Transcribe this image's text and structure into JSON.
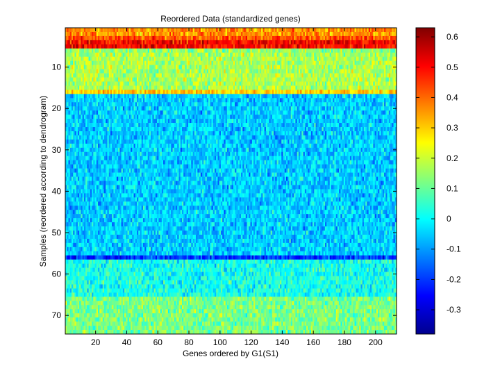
{
  "chart_data": {
    "type": "heatmap",
    "title": "Reordered Data (standardized genes)",
    "xlabel": "Genes ordered by G1(S1)",
    "ylabel": "Samples (reordered according to dendrogram)",
    "n_genes": 213,
    "n_samples": 74,
    "xlim": [
      0.5,
      213.5
    ],
    "ylim": [
      0.5,
      74.5
    ],
    "y_direction": "reversed",
    "xticks": [
      20,
      40,
      60,
      80,
      100,
      120,
      140,
      160,
      180,
      200
    ],
    "yticks": [
      10,
      20,
      30,
      40,
      50,
      60,
      70
    ],
    "colorbar": {
      "colormap": "jet",
      "clim": [
        -0.38,
        0.63
      ],
      "ticks": [
        -0.3,
        -0.2,
        -0.1,
        0,
        0.1,
        0.2,
        0.3,
        0.4,
        0.5,
        0.6
      ],
      "tick_labels": [
        "-0.3",
        "-0.2",
        "-0.1",
        "0",
        "0.1",
        "0.2",
        "0.3",
        "0.4",
        "0.5",
        "0.6"
      ]
    },
    "sample_group_levels": [
      {
        "samples": [
          1,
          2
        ],
        "mean": 0.36
      },
      {
        "samples": [
          3,
          3
        ],
        "mean": 0.42
      },
      {
        "samples": [
          4,
          5
        ],
        "mean": 0.5
      },
      {
        "samples": [
          6,
          6
        ],
        "mean": 0.14
      },
      {
        "samples": [
          7,
          15
        ],
        "mean": 0.17
      },
      {
        "samples": [
          16,
          16
        ],
        "mean": 0.3
      },
      {
        "samples": [
          17,
          55
        ],
        "mean": -0.05
      },
      {
        "samples": [
          56,
          56
        ],
        "mean": -0.2
      },
      {
        "samples": [
          57,
          65
        ],
        "mean": 0.02
      },
      {
        "samples": [
          66,
          74
        ],
        "mean": 0.12
      }
    ]
  }
}
